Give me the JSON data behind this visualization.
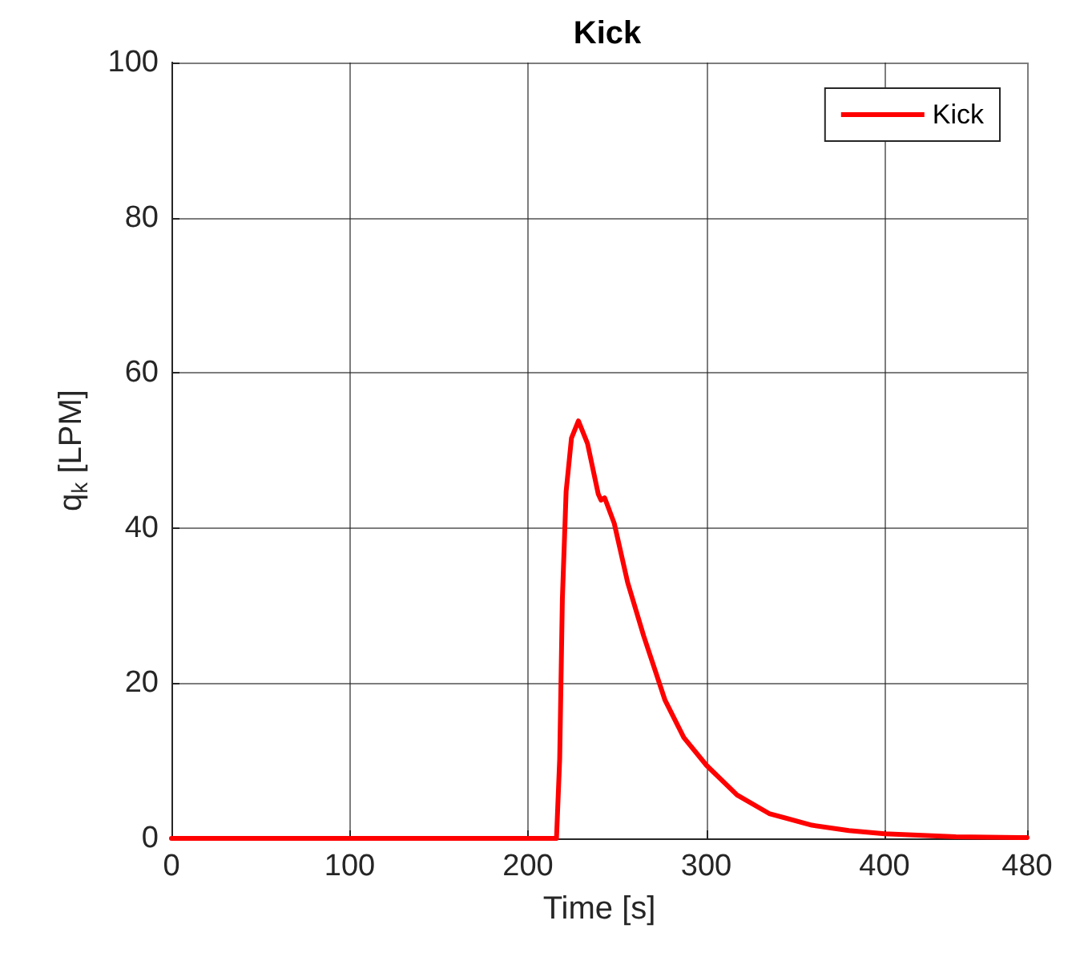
{
  "chart_data": {
    "type": "line",
    "title": "Kick",
    "xlabel": "Time [s]",
    "ylabel": "q$_{k}$ [LPM]",
    "x": [
      0,
      216,
      217.8,
      219.3,
      221.4,
      224.4,
      228.3,
      233.4,
      239.4,
      241,
      243,
      248.4,
      255.9,
      264.9,
      276.9,
      287.4,
      300.2,
      317.3,
      335.3,
      359.3,
      380,
      400,
      440,
      480
    ],
    "series": [
      {
        "name": "Kick",
        "color": "#ff0000",
        "values": [
          0,
          0,
          10.3,
          30.9,
          44.7,
          51.6,
          53.8,
          50.9,
          44.4,
          43.6,
          43.9,
          40.6,
          33.0,
          26.1,
          17.8,
          13.0,
          9.4,
          5.6,
          3.2,
          1.7,
          1.0,
          0.6,
          0.2,
          0.1
        ]
      }
    ],
    "xlim": [
      0,
      480
    ],
    "xticks": [
      0,
      100,
      200,
      300,
      400,
      480
    ],
    "ylim": [
      0,
      100
    ],
    "yticks": [
      0,
      20,
      40,
      60,
      80,
      100
    ],
    "grid": true,
    "legend": "top right",
    "marker": "none",
    "line_style": "solid"
  }
}
